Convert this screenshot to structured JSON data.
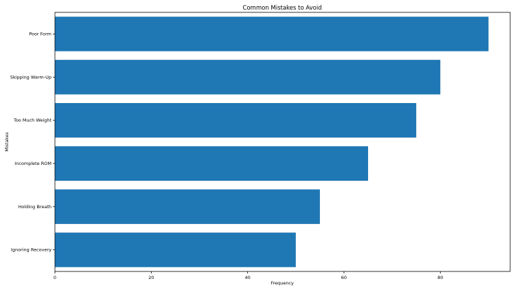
{
  "chart_data": {
    "type": "bar",
    "orientation": "horizontal",
    "title": "Common Mistakes to Avoid",
    "xlabel": "Frequency",
    "ylabel": "Mistakes",
    "categories": [
      "Ignoring Recovery",
      "Holding Breath",
      "Incomplete ROM",
      "Too Much Weight",
      "Skipping Warm-Up",
      "Poor Form"
    ],
    "values": [
      50,
      55,
      65,
      75,
      80,
      90
    ],
    "xlim": [
      0,
      94.5
    ],
    "xticks": [
      0,
      20,
      40,
      60,
      80
    ],
    "grid": false,
    "legend": "none",
    "bar_color": "#1f77b4"
  }
}
